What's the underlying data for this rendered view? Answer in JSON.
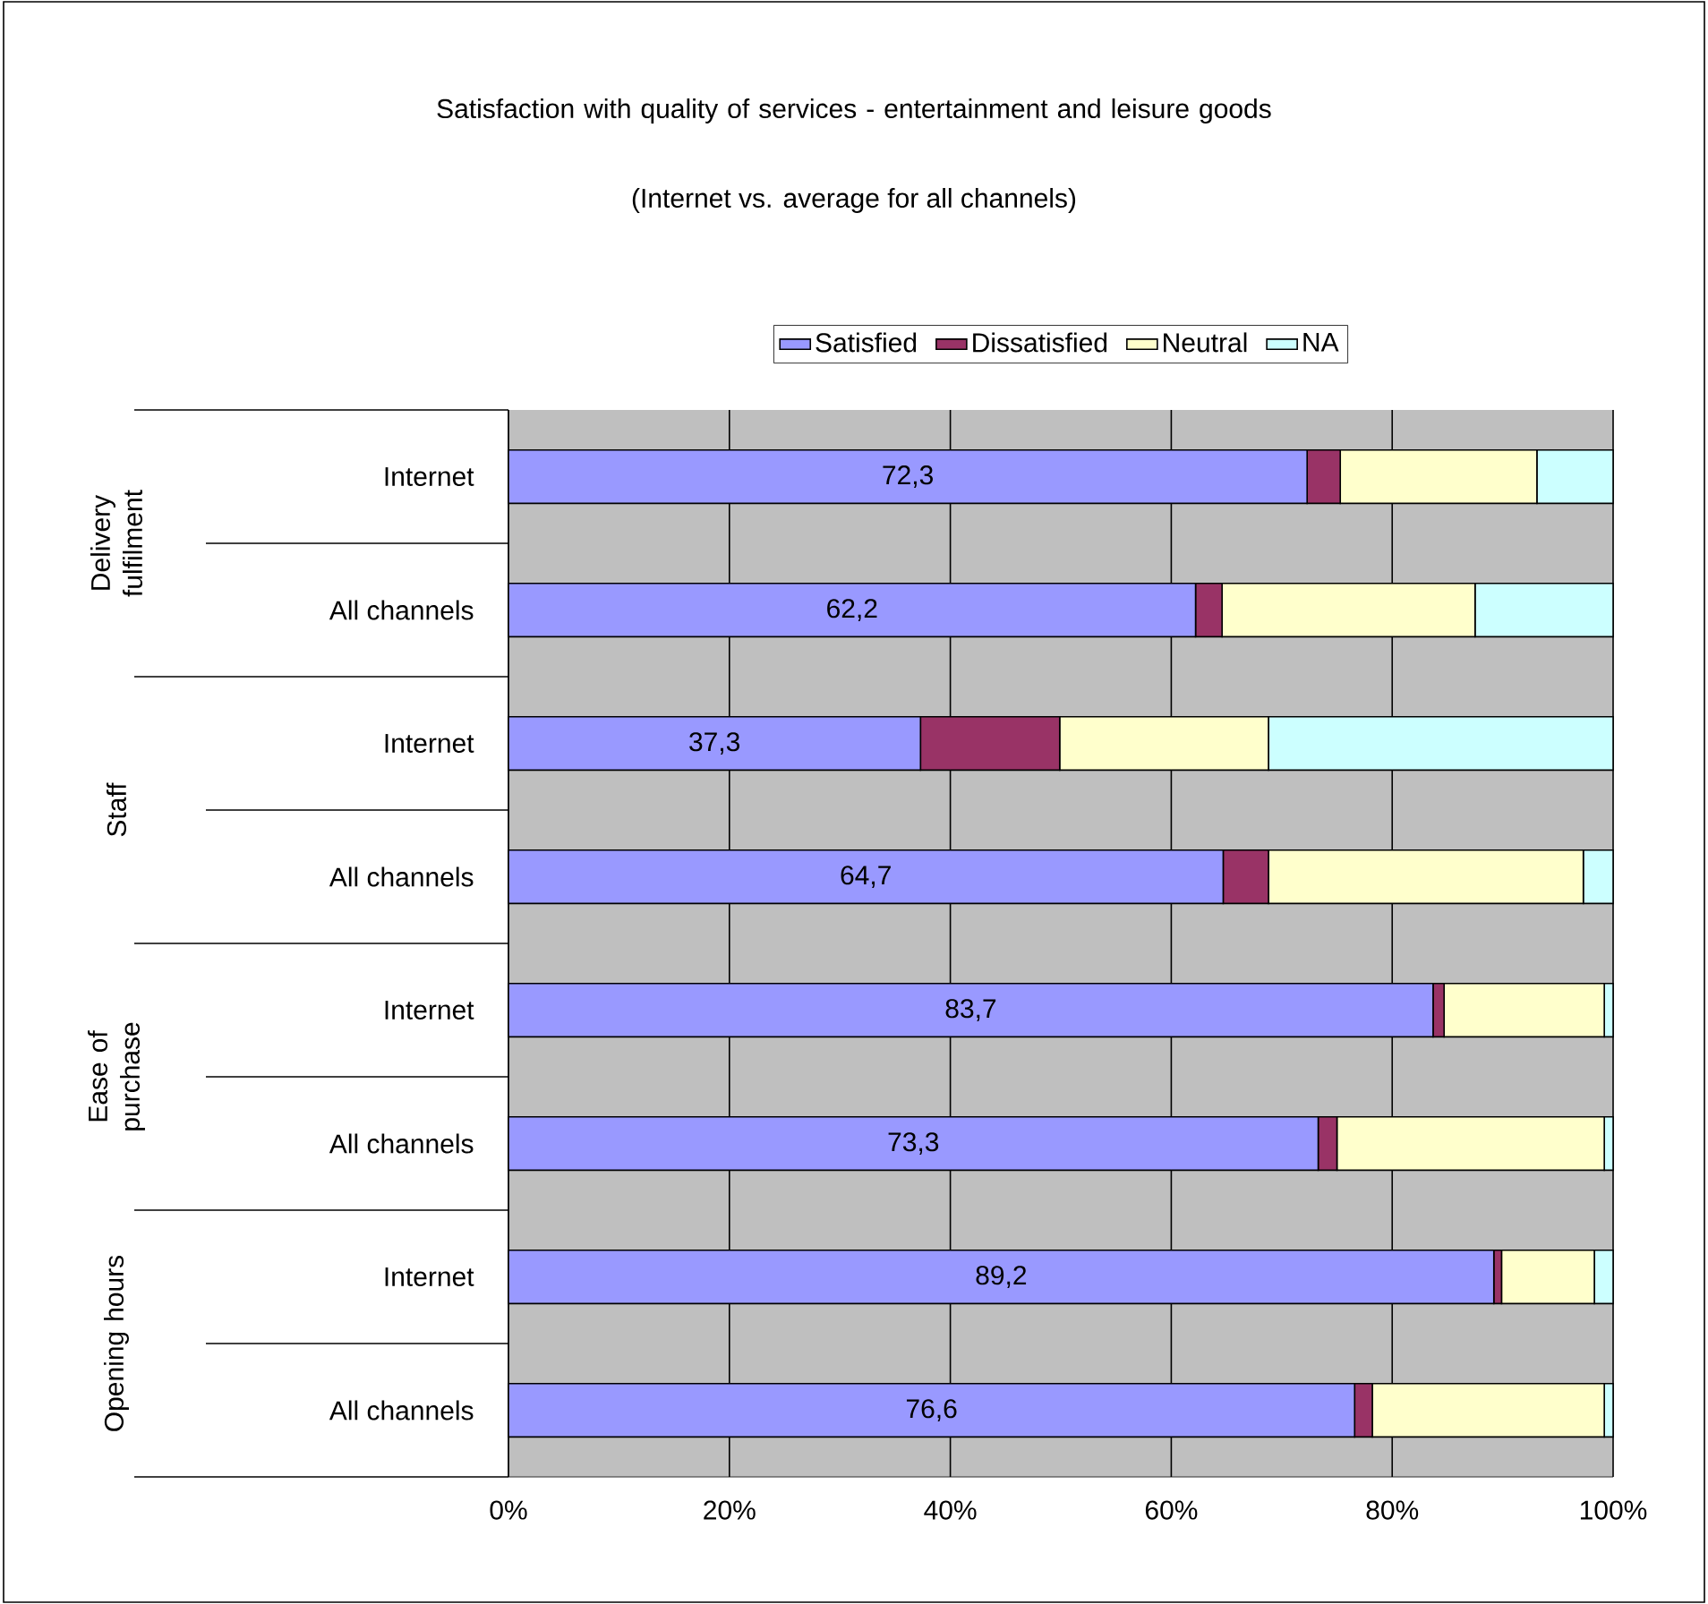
{
  "chart_data": {
    "type": "bar",
    "orientation": "horizontal",
    "stacked": true,
    "title": "Satisfaction with quality of services - entertainment and leisure goods",
    "subtitle": "(Internet vs. average for all channels)",
    "categories": [
      "Internet",
      "All channels",
      "Internet",
      "All channels",
      "Internet",
      "All channels",
      "Internet",
      "All channels"
    ],
    "annotations": [
      "Delivery fulfilment",
      "Staff",
      "Ease of purchase",
      "Opening hours"
    ],
    "series": [
      {
        "name": "Satisfied",
        "color": "#9999ff",
        "values": [
          72.3,
          62.2,
          37.3,
          64.7,
          83.7,
          73.3,
          89.2,
          76.6
        ],
        "value_labels": [
          "72,3",
          "62,2",
          "37,3",
          "64,7",
          "83,7",
          "73,3",
          "89,2",
          "76,6"
        ]
      },
      {
        "name": "Dissatisfied",
        "color": "#993366",
        "values": [
          3.0,
          2.4,
          12.6,
          4.1,
          1.0,
          1.7,
          0.7,
          1.6
        ]
      },
      {
        "name": "Neutral",
        "color": "#ffffcc",
        "values": [
          17.8,
          22.9,
          18.9,
          28.5,
          14.5,
          24.2,
          8.4,
          21.0
        ]
      },
      {
        "name": "NA",
        "color": "#ccffff",
        "values": [
          6.9,
          12.5,
          31.2,
          2.7,
          0.8,
          0.8,
          1.7,
          0.8
        ]
      }
    ],
    "xlim": [
      0,
      100
    ],
    "xticks": [
      {
        "value": 0,
        "label": "0%"
      },
      {
        "value": 20,
        "label": "20%"
      },
      {
        "value": 40,
        "label": "40%"
      },
      {
        "value": 60,
        "label": "60%"
      },
      {
        "value": 80,
        "label": "80%"
      },
      {
        "value": 100,
        "label": "100%"
      }
    ],
    "grid": "x",
    "legend": "top"
  }
}
